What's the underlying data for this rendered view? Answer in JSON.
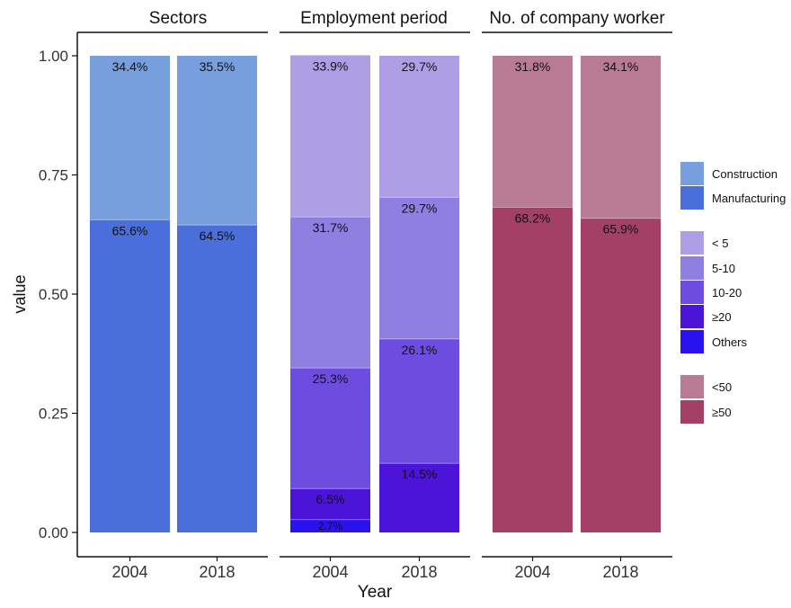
{
  "chart_data": {
    "type": "bar",
    "stacked": true,
    "facets": [
      "Sectors",
      "Employment period",
      "No. of company worker"
    ],
    "categories": [
      "2004",
      "2018"
    ],
    "xlabel": "Year",
    "ylabel": "value",
    "ylim": [
      0,
      1
    ],
    "yticks": [
      "0.00",
      "0.25",
      "0.50",
      "0.75",
      "1.00"
    ],
    "panels": [
      {
        "facet": "Sectors",
        "series": [
          {
            "name": "Manufacturing",
            "values": [
              0.656,
              0.645
            ],
            "labels": [
              "65.6%",
              "64.5%"
            ],
            "color": "#4a6fdb"
          },
          {
            "name": "Construction",
            "values": [
              0.344,
              0.355
            ],
            "labels": [
              "34.4%",
              "35.5%"
            ],
            "color": "#789fdd"
          }
        ]
      },
      {
        "facet": "Employment period",
        "series": [
          {
            "name": "Others",
            "values": [
              0.027,
              0.0
            ],
            "labels": [
              "2.7%",
              ""
            ],
            "color": "#2a12ee"
          },
          {
            "name": "≥20",
            "values": [
              0.065,
              0.145
            ],
            "labels": [
              "6.5%",
              "14.5%"
            ],
            "color": "#4b14d6"
          },
          {
            "name": "10-20",
            "values": [
              0.253,
              0.261
            ],
            "labels": [
              "25.3%",
              "26.1%"
            ],
            "color": "#6d4de0"
          },
          {
            "name": "5-10",
            "values": [
              0.317,
              0.297
            ],
            "labels": [
              "31.7%",
              "29.7%"
            ],
            "color": "#8e7fe0"
          },
          {
            "name": "< 5",
            "values": [
              0.339,
              0.297
            ],
            "labels": [
              "33.9%",
              "29.7%"
            ],
            "color": "#ae9ee5"
          }
        ]
      },
      {
        "facet": "No. of company worker",
        "series": [
          {
            "name": "≥50",
            "values": [
              0.682,
              0.659
            ],
            "labels": [
              "68.2%",
              "65.9%"
            ],
            "color": "#a44066"
          },
          {
            "name": "<50",
            "values": [
              0.318,
              0.341
            ],
            "labels": [
              "31.8%",
              "34.1%"
            ],
            "color": "#b97b94"
          }
        ]
      }
    ],
    "legend": {
      "placement": "right",
      "groups": [
        [
          {
            "name": "Construction",
            "color": "#789fdd"
          },
          {
            "name": "Manufacturing",
            "color": "#4a6fdb"
          }
        ],
        [
          {
            "name": "< 5",
            "color": "#ae9ee5"
          },
          {
            "name": "5-10",
            "color": "#8e7fe0"
          },
          {
            "name": "10-20",
            "color": "#6d4de0"
          },
          {
            "name": "≥20",
            "color": "#4b14d6"
          },
          {
            "name": "Others",
            "color": "#2a12ee"
          }
        ],
        [
          {
            "name": "<50",
            "color": "#b97b94"
          },
          {
            "name": "≥50",
            "color": "#a44066"
          }
        ]
      ]
    },
    "grid": false
  }
}
